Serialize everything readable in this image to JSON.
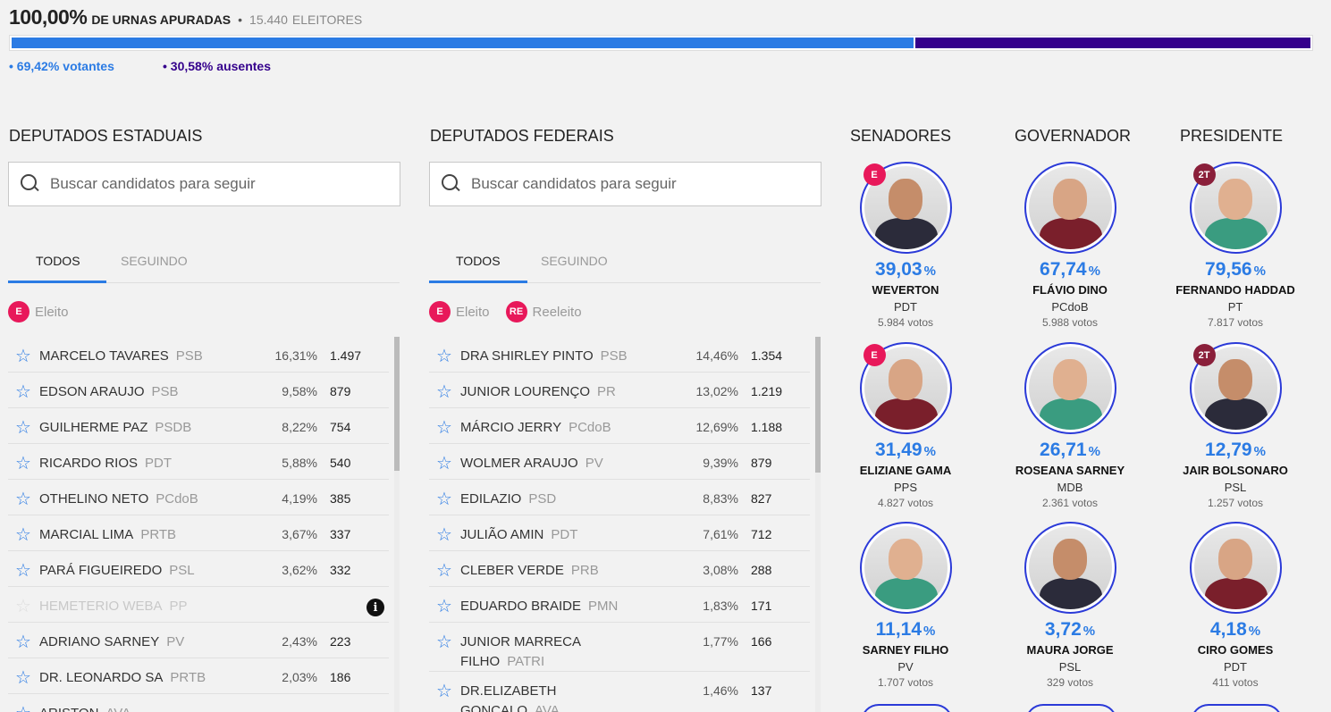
{
  "header": {
    "pct_apuradas": "100,00%",
    "apuradas_label": "DE URNAS APURADAS",
    "separator": "•",
    "eleitores_num": "15.440",
    "eleitores_label": "ELEITORES",
    "votantes_pct": "69,42%",
    "votantes_fraction": 0.6942,
    "votantes_label": "votantes",
    "ausentes_pct": "30,58%",
    "ausentes_label": "ausentes",
    "colors": {
      "votantes": "#2b7be4",
      "ausentes": "#34008c"
    }
  },
  "estaduais": {
    "title": "DEPUTADOS ESTADUAIS",
    "search_placeholder": "Buscar candidatos para seguir",
    "tab_all": "TODOS",
    "tab_following": "SEGUINDO",
    "badges": [
      {
        "icon": "E",
        "label": "Eleito"
      }
    ],
    "rows": [
      {
        "name": "MARCELO TAVARES",
        "party": "PSB",
        "pct": "16,31%",
        "votes": "1.497"
      },
      {
        "name": "EDSON ARAUJO",
        "party": "PSB",
        "pct": "9,58%",
        "votes": "879"
      },
      {
        "name": "GUILHERME PAZ",
        "party": "PSDB",
        "pct": "8,22%",
        "votes": "754"
      },
      {
        "name": "RICARDO RIOS",
        "party": "PDT",
        "pct": "5,88%",
        "votes": "540"
      },
      {
        "name": "OTHELINO NETO",
        "party": "PCdoB",
        "pct": "4,19%",
        "votes": "385"
      },
      {
        "name": "MARCIAL LIMA",
        "party": "PRTB",
        "pct": "3,67%",
        "votes": "337"
      },
      {
        "name": "PARÁ FIGUEIREDO",
        "party": "PSL",
        "pct": "3,62%",
        "votes": "332"
      },
      {
        "name": "HEMETERIO WEBA",
        "party": "PP",
        "pct": "",
        "votes": "",
        "disabled": true
      },
      {
        "name": "ADRIANO SARNEY",
        "party": "PV",
        "pct": "2,43%",
        "votes": "223"
      },
      {
        "name": "DR. LEONARDO SA",
        "party": "PRTB",
        "pct": "2,03%",
        "votes": "186"
      },
      {
        "name": "ARISTON",
        "party": "AVA",
        "pct": "",
        "votes": ""
      }
    ]
  },
  "federais": {
    "title": "DEPUTADOS FEDERAIS",
    "search_placeholder": "Buscar candidatos para seguir",
    "tab_all": "TODOS",
    "tab_following": "SEGUINDO",
    "badges": [
      {
        "icon": "E",
        "label": "Eleito"
      },
      {
        "icon": "RE",
        "label": "Reeleito"
      }
    ],
    "rows": [
      {
        "name": "DRA SHIRLEY PINTO",
        "party": "PSB",
        "pct": "14,46%",
        "votes": "1.354"
      },
      {
        "name": "JUNIOR LOURENÇO",
        "party": "PR",
        "pct": "13,02%",
        "votes": "1.219"
      },
      {
        "name": "MÁRCIO JERRY",
        "party": "PCdoB",
        "pct": "12,69%",
        "votes": "1.188"
      },
      {
        "name": "WOLMER ARAUJO",
        "party": "PV",
        "pct": "9,39%",
        "votes": "879"
      },
      {
        "name": "EDILAZIO",
        "party": "PSD",
        "pct": "8,83%",
        "votes": "827"
      },
      {
        "name": "JULIÃO AMIN",
        "party": "PDT",
        "pct": "7,61%",
        "votes": "712"
      },
      {
        "name": "CLEBER VERDE",
        "party": "PRB",
        "pct": "3,08%",
        "votes": "288"
      },
      {
        "name": "EDUARDO BRAIDE",
        "party": "PMN",
        "pct": "1,83%",
        "votes": "171"
      },
      {
        "name": "JUNIOR MARRECA FILHO",
        "party": "PATRI",
        "pct": "1,77%",
        "votes": "166",
        "tall": true
      },
      {
        "name": "DR.ELIZABETH GONÇALO",
        "party": "AVA",
        "pct": "1,46%",
        "votes": "137",
        "tall": true
      }
    ]
  },
  "majority": {
    "senadores_title": "SENADORES",
    "governador_title": "GOVERNADOR",
    "presidente_title": "PRESIDENTE",
    "pct_sign": "%",
    "votos_word": "votos",
    "senadores": [
      {
        "name": "WEVERTON",
        "party": "PDT",
        "pct": "39,03",
        "votes": "5.984",
        "flag": "E"
      },
      {
        "name": "ELIZIANE GAMA",
        "party": "PPS",
        "pct": "31,49",
        "votes": "4.827",
        "flag": "E"
      },
      {
        "name": "SARNEY FILHO",
        "party": "PV",
        "pct": "11,14",
        "votes": "1.707",
        "flag": ""
      }
    ],
    "governador": [
      {
        "name": "FLÁVIO DINO",
        "party": "PCdoB",
        "pct": "67,74",
        "votes": "5.988",
        "flag": ""
      },
      {
        "name": "ROSEANA SARNEY",
        "party": "MDB",
        "pct": "26,71",
        "votes": "2.361",
        "flag": ""
      },
      {
        "name": "MAURA JORGE",
        "party": "PSL",
        "pct": "3,72",
        "votes": "329",
        "flag": ""
      }
    ],
    "presidente": [
      {
        "name": "FERNANDO HADDAD",
        "party": "PT",
        "pct": "79,56",
        "votes": "7.817",
        "flag": "2T"
      },
      {
        "name": "JAIR BOLSONARO",
        "party": "PSL",
        "pct": "12,79",
        "votes": "1.257",
        "flag": "2T"
      },
      {
        "name": "CIRO GOMES",
        "party": "PDT",
        "pct": "4,18",
        "votes": "411",
        "flag": ""
      }
    ]
  }
}
